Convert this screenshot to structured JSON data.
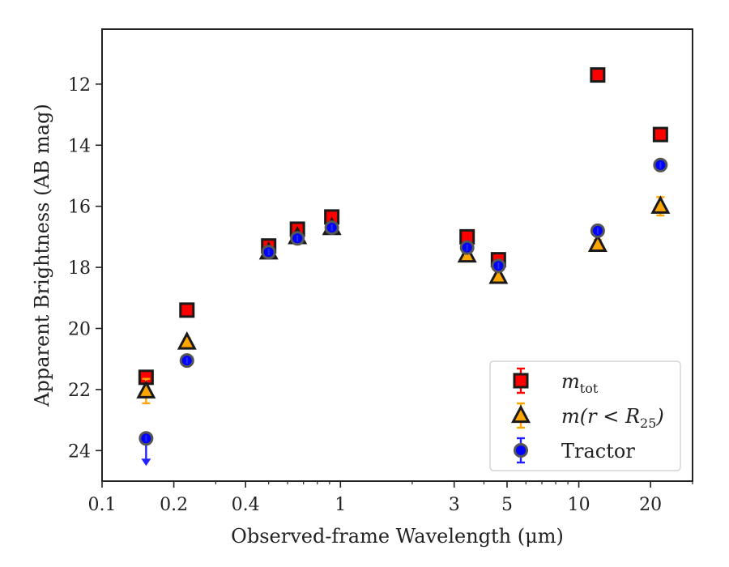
{
  "chart_data": {
    "type": "scatter",
    "xlabel": "Observed-frame Wavelength (μm)",
    "ylabel": "Apparent Brightness (AB mag)",
    "xscale": "log",
    "xlim": [
      0.1,
      30
    ],
    "ylim": [
      25,
      10.2
    ],
    "y_inverted": true,
    "x_ticks": [
      0.1,
      0.2,
      0.4,
      1,
      3,
      5,
      10,
      20
    ],
    "x_tick_labels": [
      "0.1",
      "0.2",
      "0.4",
      "1",
      "3",
      "5",
      "10",
      "20"
    ],
    "y_ticks": [
      12,
      14,
      16,
      18,
      20,
      22,
      24
    ],
    "y_tick_labels": [
      "12",
      "14",
      "16",
      "18",
      "20",
      "22",
      "24"
    ],
    "grid": false,
    "legend_position": "lower-right",
    "series": [
      {
        "key": "mtot",
        "label_main": "m",
        "label_sub": "tot",
        "marker": "square",
        "color": "#ff0000",
        "edge": "#1a1a1a",
        "error_color": "#ff0000",
        "points": [
          {
            "x": 0.153,
            "y": 21.6,
            "err": 0.12
          },
          {
            "x": 0.227,
            "y": 19.4,
            "err": 0.08
          },
          {
            "x": 0.5,
            "y": 17.3,
            "err": 0.05
          },
          {
            "x": 0.66,
            "y": 16.75,
            "err": 0.05
          },
          {
            "x": 0.92,
            "y": 16.35,
            "err": 0.05
          },
          {
            "x": 3.4,
            "y": 17.0,
            "err": 0.05
          },
          {
            "x": 4.6,
            "y": 17.75,
            "err": 0.06
          },
          {
            "x": 12.0,
            "y": 11.7,
            "err": 0.05
          },
          {
            "x": 22.0,
            "y": 13.65,
            "err": 0.06
          }
        ]
      },
      {
        "key": "mr25",
        "label_main": "m(r < R",
        "label_sub": "25",
        "label_end": ")",
        "marker": "triangle",
        "color": "#ffa500",
        "edge": "#1a1a1a",
        "error_color": "#ffa500",
        "points": [
          {
            "x": 0.153,
            "y": 22.05,
            "err": 0.4
          },
          {
            "x": 0.227,
            "y": 20.45,
            "err": 0.12
          },
          {
            "x": 0.5,
            "y": 17.5,
            "err": 0.05
          },
          {
            "x": 0.66,
            "y": 17.0,
            "err": 0.05
          },
          {
            "x": 0.92,
            "y": 16.7,
            "err": 0.05
          },
          {
            "x": 3.4,
            "y": 17.6,
            "err": 0.05
          },
          {
            "x": 4.6,
            "y": 18.3,
            "err": 0.08
          },
          {
            "x": 12.0,
            "y": 17.25,
            "err": 0.15
          },
          {
            "x": 22.0,
            "y": 16.0,
            "err": 0.3
          }
        ]
      },
      {
        "key": "tractor",
        "label_main": "Tractor",
        "marker": "circle",
        "color": "#0000ff",
        "edge": "#555555",
        "error_color": "#2222ff",
        "points": [
          {
            "x": 0.153,
            "y": 23.6,
            "err": 0,
            "upper_limit": true
          },
          {
            "x": 0.227,
            "y": 21.05,
            "err": 0.08
          },
          {
            "x": 0.5,
            "y": 17.5,
            "err": 0.05
          },
          {
            "x": 0.66,
            "y": 17.05,
            "err": 0.05
          },
          {
            "x": 0.92,
            "y": 16.7,
            "err": 0.05
          },
          {
            "x": 3.4,
            "y": 17.35,
            "err": 0.05
          },
          {
            "x": 4.6,
            "y": 17.95,
            "err": 0.05
          },
          {
            "x": 12.0,
            "y": 16.8,
            "err": 0.05
          },
          {
            "x": 22.0,
            "y": 14.65,
            "err": 0.05
          }
        ]
      }
    ]
  }
}
